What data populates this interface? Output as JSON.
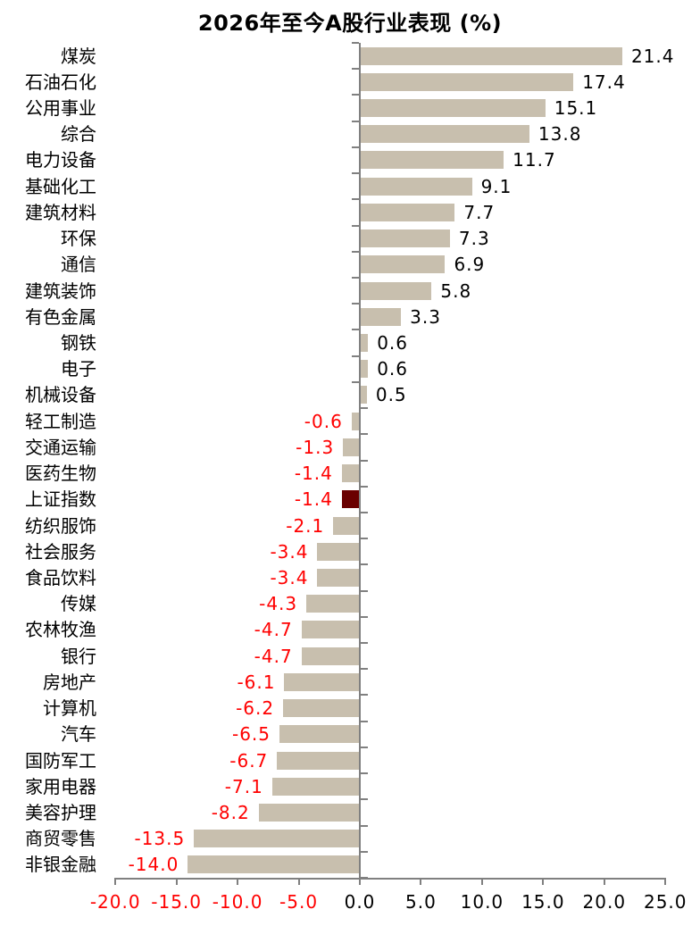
{
  "chart_data": {
    "type": "bar",
    "orientation": "horizontal",
    "title": "2026年至今A股行业表现 (%)",
    "categories": [
      "煤炭",
      "石油石化",
      "公用事业",
      "综合",
      "电力设备",
      "基础化工",
      "建筑材料",
      "环保",
      "通信",
      "建筑装饰",
      "有色金属",
      "钢铁",
      "电子",
      "机械设备",
      "轻工制造",
      "交通运输",
      "医药生物",
      "上证指数",
      "纺织服饰",
      "社会服务",
      "食品饮料",
      "传媒",
      "农林牧渔",
      "银行",
      "房地产",
      "计算机",
      "汽车",
      "国防军工",
      "家用电器",
      "美容护理",
      "商贸零售",
      "非银金融"
    ],
    "values": [
      21.4,
      17.4,
      15.1,
      13.8,
      11.7,
      9.1,
      7.7,
      7.3,
      6.9,
      5.8,
      3.3,
      0.6,
      0.6,
      0.5,
      -0.6,
      -1.3,
      -1.4,
      -1.4,
      -2.1,
      -3.4,
      -3.4,
      -4.3,
      -4.7,
      -4.7,
      -6.1,
      -6.2,
      -6.5,
      -6.7,
      -7.1,
      -8.2,
      -13.5,
      -14.0
    ],
    "value_labels": [
      "21.4",
      "17.4",
      "15.1",
      "13.8",
      "11.7",
      "9.1",
      "7.7",
      "7.3",
      "6.9",
      "5.8",
      "3.3",
      "0.6",
      "0.6",
      "0.5",
      "-0.6",
      "-1.3",
      "-1.4",
      "-1.4",
      "-2.1",
      "-3.4",
      "-3.4",
      "-4.3",
      "-4.7",
      "-4.7",
      "-6.1",
      "-6.2",
      "-6.5",
      "-6.7",
      "-7.1",
      "-8.2",
      "-13.5",
      "-14.0"
    ],
    "highlight_category": "上证指数",
    "highlight_index": 17,
    "xlim": [
      -20,
      25
    ],
    "x_ticks": [
      -20,
      -15,
      -10,
      -5,
      0,
      5,
      10,
      15,
      20,
      25
    ],
    "x_tick_labels": [
      "-20.0",
      "-15.0",
      "-10.0",
      "-5.0",
      "0.0",
      "5.0",
      "10.0",
      "15.0",
      "20.0",
      "25.0"
    ],
    "grid": false,
    "legend_position": "none",
    "colors": {
      "bar": "#C8BFAE",
      "highlight_bar": "#6A0000",
      "positive_label": "#000000",
      "negative_label": "#FF0000",
      "positive_tick_label": "#000000",
      "negative_tick_label": "#FF0000",
      "axis": "#808080",
      "title": "#000000"
    }
  }
}
